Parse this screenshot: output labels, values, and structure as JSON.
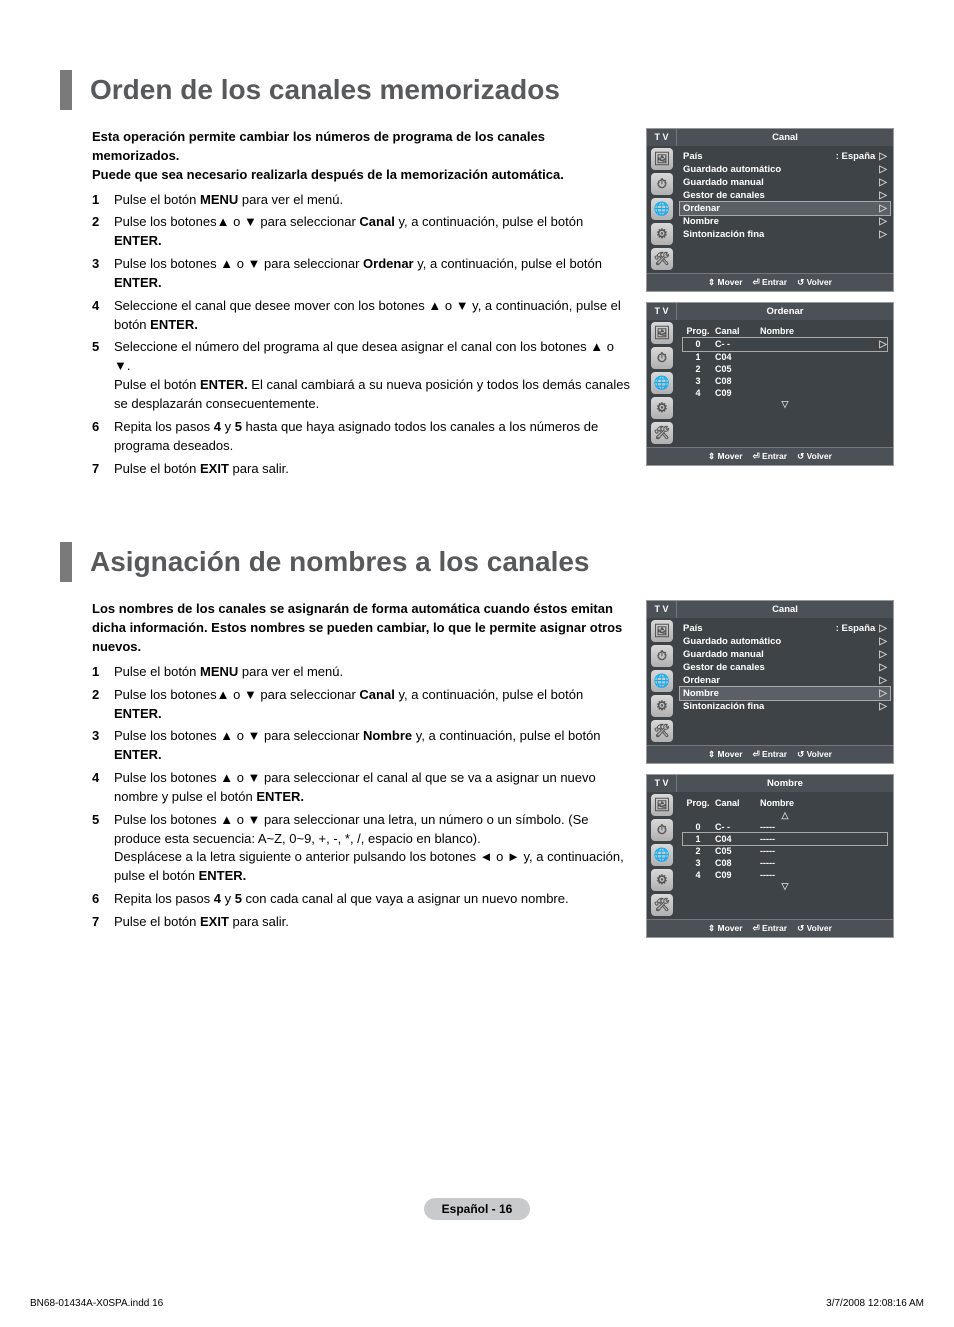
{
  "section1": {
    "title": "Orden de los canales memorizados",
    "intro": "Esta operación permite cambiar los números de programa de los canales memorizados.\nPuede que sea necesario realizarla después de la memorización automática.",
    "steps": [
      {
        "n": "1",
        "html": "Pulse el botón <b>MENU</b> para ver el menú."
      },
      {
        "n": "2",
        "html": "Pulse los botones▲ o ▼ para seleccionar <b>Canal</b> y, a continuación, pulse el botón <b>ENTER.</b>"
      },
      {
        "n": "3",
        "html": "Pulse los botones ▲ o ▼ para seleccionar <b>Ordenar</b> y, a continuación, pulse el botón <b>ENTER.</b>"
      },
      {
        "n": "4",
        "html": "Seleccione el canal que desee mover con los botones ▲ o ▼ y, a continuación, pulse el botón <b>ENTER.</b>"
      },
      {
        "n": "5",
        "html": "Seleccione el número del programa al que desea asignar el canal con los botones ▲ o ▼.<br>Pulse el botón <b>ENTER.</b> El canal cambiará a su nueva posición y todos los demás canales se desplazarán consecuentemente."
      },
      {
        "n": "6",
        "html": "Repita los pasos <b>4</b> y <b>5</b> hasta que haya asignado todos los canales a los números de programa deseados."
      },
      {
        "n": "7",
        "html": "Pulse el botón <b>EXIT</b> para salir."
      }
    ]
  },
  "section2": {
    "title": "Asignación de nombres a los canales",
    "intro": "Los nombres de los canales se asignarán de forma automática cuando éstos emitan dicha información. Estos nombres se pueden cambiar, lo que le permite asignar otros nuevos.",
    "steps": [
      {
        "n": "1",
        "html": "Pulse el botón <b>MENU</b> para ver el menú."
      },
      {
        "n": "2",
        "html": "Pulse los botones▲ o ▼ para seleccionar <b>Canal</b> y, a continuación, pulse el botón <b>ENTER.</b>"
      },
      {
        "n": "3",
        "html": "Pulse los botones ▲ o ▼ para seleccionar <b>Nombre</b> y, a continuación, pulse el botón <b>ENTER.</b>"
      },
      {
        "n": "4",
        "html": "Pulse los botones ▲ o ▼ para seleccionar el canal al que se va a asignar un nuevo nombre y pulse el botón <b>ENTER.</b>"
      },
      {
        "n": "5",
        "html": "Pulse los botones ▲ o ▼ para seleccionar una letra, un número o un símbolo. (Se produce esta secuencia: A~Z, 0~9, +, -, *, /, espacio en blanco).<br>Desplácese a la letra siguiente o anterior pulsando los botones ◄ o ►  y, a continuación, pulse el botón <b>ENTER.</b>"
      },
      {
        "n": "6",
        "html": "Repita los pasos <b>4</b> y <b>5</b> con cada canal al que vaya a asignar un nuevo nombre."
      },
      {
        "n": "7",
        "html": "Pulse el botón <b>EXIT</b> para salir."
      }
    ]
  },
  "osd_icons": [
    "🖼",
    "⏱",
    "🌐",
    "⚙",
    "🛠"
  ],
  "osd1a": {
    "tv": "T V",
    "title": "Canal",
    "rows": [
      {
        "label": "País",
        "val": ": España",
        "sel": false
      },
      {
        "label": "Guardado automático",
        "val": "",
        "sel": false
      },
      {
        "label": "Guardado manual",
        "val": "",
        "sel": false
      },
      {
        "label": "Gestor de canales",
        "val": "",
        "sel": false
      },
      {
        "label": "Ordenar",
        "val": "",
        "sel": true
      },
      {
        "label": "Nombre",
        "val": "",
        "sel": false
      },
      {
        "label": "Sintonización fina",
        "val": "",
        "sel": false
      }
    ],
    "foot": [
      "⇕ Mover",
      "⏎ Entrar",
      "↺ Volver"
    ]
  },
  "osd1b": {
    "tv": "T V",
    "title": "Ordenar",
    "headers": [
      "Prog.",
      "Canal",
      "Nombre"
    ],
    "rows": [
      {
        "p": "0",
        "c": "C- -",
        "n": "",
        "sel": true,
        "arrow": true
      },
      {
        "p": "1",
        "c": "C04",
        "n": "",
        "sel": false
      },
      {
        "p": "2",
        "c": "C05",
        "n": "",
        "sel": false
      },
      {
        "p": "3",
        "c": "C08",
        "n": "",
        "sel": false
      },
      {
        "p": "4",
        "c": "C09",
        "n": "",
        "sel": false
      }
    ],
    "tri_down": "▽",
    "foot": [
      "⇕ Mover",
      "⏎ Entrar",
      "↺ Volver"
    ]
  },
  "osd2a": {
    "tv": "T V",
    "title": "Canal",
    "rows": [
      {
        "label": "País",
        "val": ": España",
        "sel": false
      },
      {
        "label": "Guardado automático",
        "val": "",
        "sel": false
      },
      {
        "label": "Guardado manual",
        "val": "",
        "sel": false
      },
      {
        "label": "Gestor de canales",
        "val": "",
        "sel": false
      },
      {
        "label": "Ordenar",
        "val": "",
        "sel": false
      },
      {
        "label": "Nombre",
        "val": "",
        "sel": true
      },
      {
        "label": "Sintonización fina",
        "val": "",
        "sel": false
      }
    ],
    "foot": [
      "⇕ Mover",
      "⏎ Entrar",
      "↺ Volver"
    ]
  },
  "osd2b": {
    "tv": "T V",
    "title": "Nombre",
    "headers": [
      "Prog.",
      "Canal",
      "Nombre"
    ],
    "tri_up": "△",
    "rows": [
      {
        "p": "0",
        "c": "C- -",
        "n": "-----",
        "sel": false
      },
      {
        "p": "1",
        "c": "C04",
        "n": "-----",
        "sel": true
      },
      {
        "p": "2",
        "c": "C05",
        "n": "-----",
        "sel": false
      },
      {
        "p": "3",
        "c": "C08",
        "n": "-----",
        "sel": false
      },
      {
        "p": "4",
        "c": "C09",
        "n": "-----",
        "sel": false
      }
    ],
    "tri_down": "▽",
    "foot": [
      "⇕ Mover",
      "⏎ Entrar",
      "↺ Volver"
    ]
  },
  "page_num": "Español - 16",
  "print_left": "BN68-01434A-X0SPA.indd   16",
  "print_right": "3/7/2008   12:08:16 AM"
}
